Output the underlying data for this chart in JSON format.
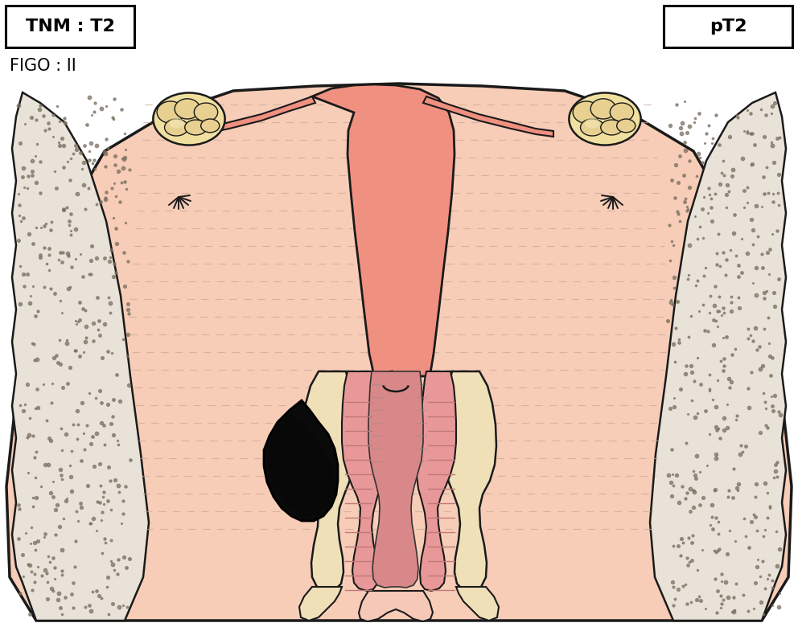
{
  "bg_color": "#ffffff",
  "tissue_fill": "#f7cdb8",
  "tissue_fill2": "#f9ddd0",
  "fibrous_bg": "#e8e2d8",
  "fibrous_dots": "#7a7060",
  "uterus_fill": "#f09080",
  "uterus_fill2": "#f5a898",
  "cervix_cream": "#f0e0b8",
  "cervix_pink": "#e89898",
  "cervix_inner": "#e08888",
  "vagina_pink": "#e89898",
  "ovary_fill": "#f0e0a0",
  "ovary_fill2": "#e8d090",
  "ovary_fill3": "#f5e8b8",
  "tube_fill": "#f09080",
  "tumor_fill": "#0a0a0a",
  "outline_color": "#1a1a1a",
  "dashed_color": "#c8a898",
  "cream_fill": "#f0e0b8",
  "pink_light": "#f5c0b8",
  "tnm_text": "TNM : T2",
  "pt_text": "pT2",
  "figo_text": "FIGO : II"
}
